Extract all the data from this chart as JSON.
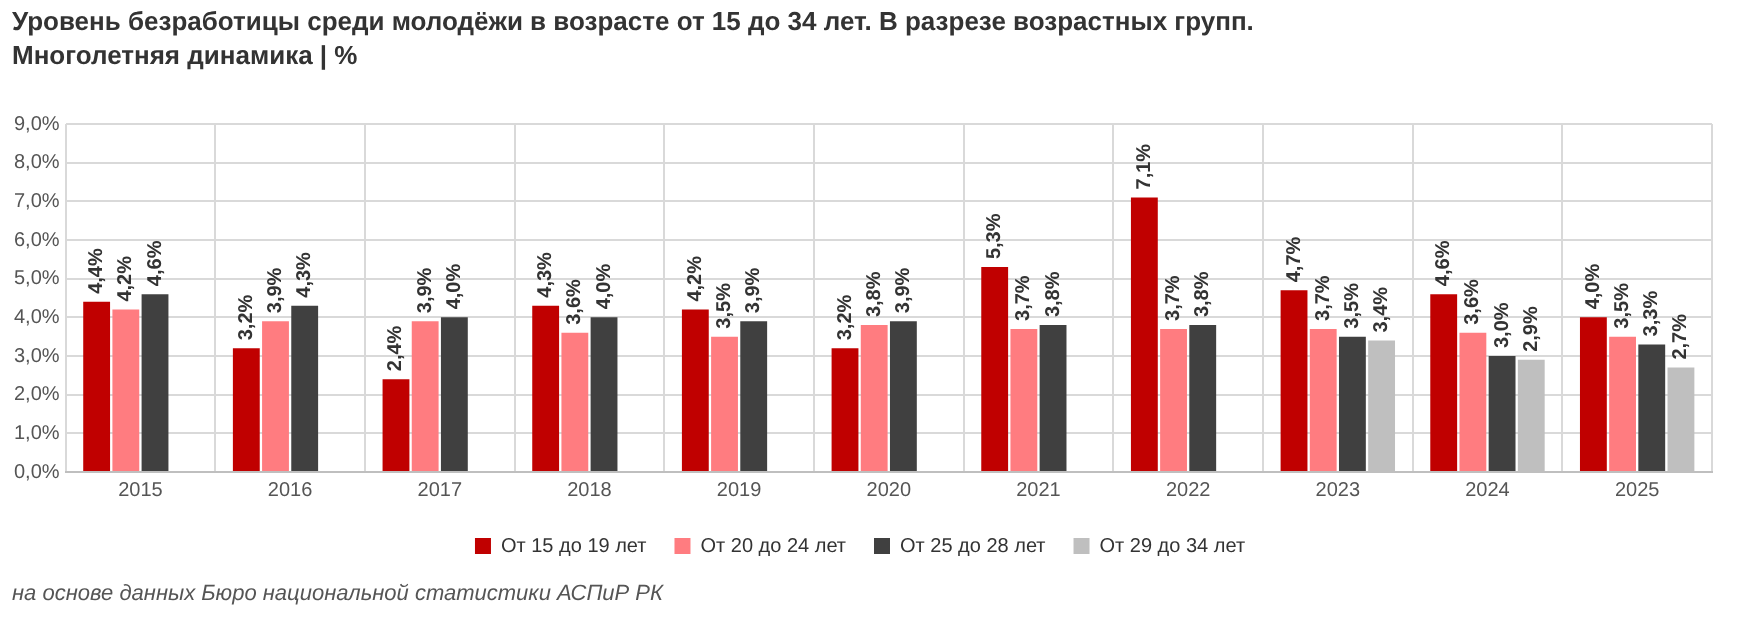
{
  "chart_data": {
    "type": "bar",
    "title": "Уровень безработицы среди молодёжи в возрасте от 15 до 34 лет. В разрезе возрастных групп.\nМноголетняя динамика | %",
    "categories": [
      "2015",
      "2016",
      "2017",
      "2018",
      "2019",
      "2020",
      "2021",
      "2022",
      "2023",
      "2024",
      "2025"
    ],
    "series": [
      {
        "name": "От 15 до 19 лет",
        "color": "#c00000",
        "values": [
          4.4,
          3.2,
          2.4,
          4.3,
          4.2,
          3.2,
          5.3,
          7.1,
          4.7,
          4.6,
          4.0
        ],
        "value_labels": [
          "4,4%",
          "3,2%",
          "2,4%",
          "4,3%",
          "4,2%",
          "3,2%",
          "5,3%",
          "7,1%",
          "4,7%",
          "4,6%",
          "4,0%"
        ]
      },
      {
        "name": "От 20 до 24 лет",
        "color": "#ff7c80",
        "values": [
          4.2,
          3.9,
          3.9,
          3.6,
          3.5,
          3.8,
          3.7,
          3.7,
          3.7,
          3.6,
          3.5
        ],
        "value_labels": [
          "4,2%",
          "3,9%",
          "3,9%",
          "3,6%",
          "3,5%",
          "3,8%",
          "3,7%",
          "3,7%",
          "3,7%",
          "3,6%",
          "3,5%"
        ]
      },
      {
        "name": "От 25 до 28 лет",
        "color": "#404040",
        "values": [
          4.6,
          4.3,
          4.0,
          4.0,
          3.9,
          3.9,
          3.8,
          3.8,
          3.5,
          3.0,
          3.3
        ],
        "value_labels": [
          "4,6%",
          "4,3%",
          "4,0%",
          "4,0%",
          "3,9%",
          "3,9%",
          "3,8%",
          "3,8%",
          "3,5%",
          "3,0%",
          "3,3%"
        ]
      },
      {
        "name": "От 29 до 34 лет",
        "color": "#bfbfbf",
        "values": [
          null,
          null,
          null,
          null,
          null,
          null,
          null,
          null,
          3.4,
          2.9,
          2.7
        ],
        "value_labels": [
          null,
          null,
          null,
          null,
          null,
          null,
          null,
          null,
          "3,4%",
          "2,9%",
          "2,7%"
        ]
      }
    ],
    "ylim": [
      0,
      9
    ],
    "yticks": [
      {
        "value": 0,
        "label": "0,0%"
      },
      {
        "value": 1,
        "label": "1,0%"
      },
      {
        "value": 2,
        "label": "2,0%"
      },
      {
        "value": 3,
        "label": "3,0%"
      },
      {
        "value": 4,
        "label": "4,0%"
      },
      {
        "value": 5,
        "label": "5,0%"
      },
      {
        "value": 6,
        "label": "6,0%"
      },
      {
        "value": 7,
        "label": "7,0%"
      },
      {
        "value": 8,
        "label": "8,0%"
      },
      {
        "value": 9,
        "label": "9,0%"
      }
    ],
    "grid": true,
    "legend": "bottom",
    "annotations": [
      "на основе данных Бюро национальной статистики АСПиР РК"
    ]
  }
}
